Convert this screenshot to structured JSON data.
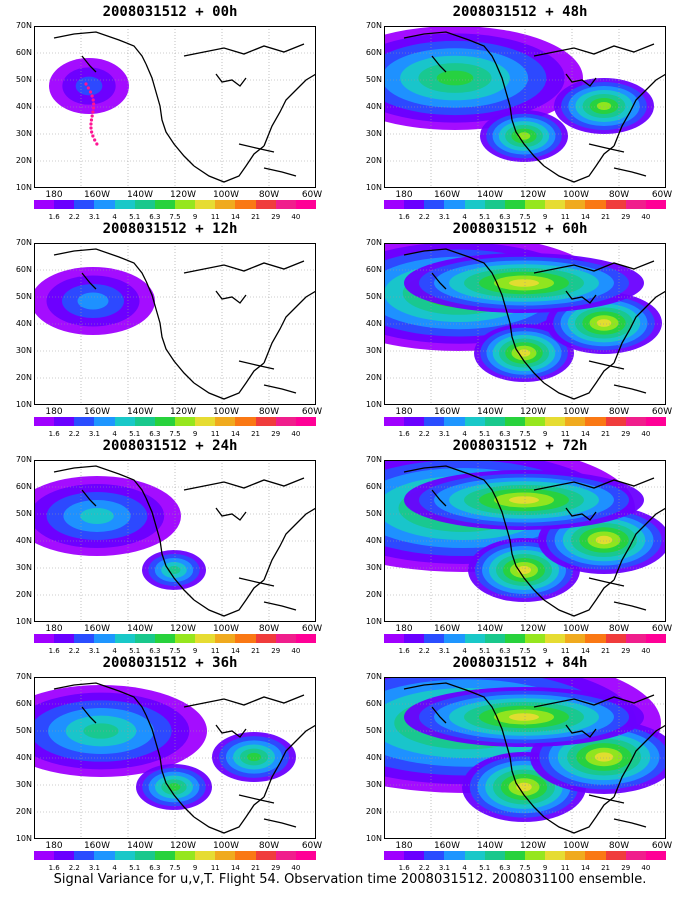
{
  "caption": "Signal Variance for u,v,T. Flight 54. Observation time 2008031512. 2008031100 ensemble.",
  "panels": [
    {
      "title": "2008031512 + 00h",
      "level": 0
    },
    {
      "title": "2008031512 + 48h",
      "level": 4
    },
    {
      "title": "2008031512 + 12h",
      "level": 1
    },
    {
      "title": "2008031512 + 60h",
      "level": 5
    },
    {
      "title": "2008031512 + 24h",
      "level": 2
    },
    {
      "title": "2008031512 + 72h",
      "level": 6
    },
    {
      "title": "2008031512 + 36h",
      "level": 3
    },
    {
      "title": "2008031512 + 84h",
      "level": 7
    }
  ],
  "y_axis_labels": [
    "70N",
    "60N",
    "50N",
    "40N",
    "30N",
    "20N",
    "10N"
  ],
  "x_axis_labels": [
    "180",
    "160W",
    "140W",
    "120W",
    "100W",
    "80W",
    "60W"
  ],
  "colorbar_labels": [
    "1.6",
    "2.2",
    "3.1",
    "4",
    "5.1",
    "6.3",
    "7.5",
    "9",
    "11",
    "14",
    "21",
    "29",
    "40"
  ],
  "colorbar_colors": [
    "#9f00ff",
    "#6a00ff",
    "#2a4dff",
    "#1e96ff",
    "#19c8c8",
    "#19c88c",
    "#28d23c",
    "#96e61e",
    "#e6dc32",
    "#f0aa1e",
    "#fa7814",
    "#f03c3c",
    "#f01e8c",
    "#ff0096"
  ],
  "colors": {
    "coast": "#000000",
    "grid": "#999999",
    "flight_track": "#ff1493"
  }
}
